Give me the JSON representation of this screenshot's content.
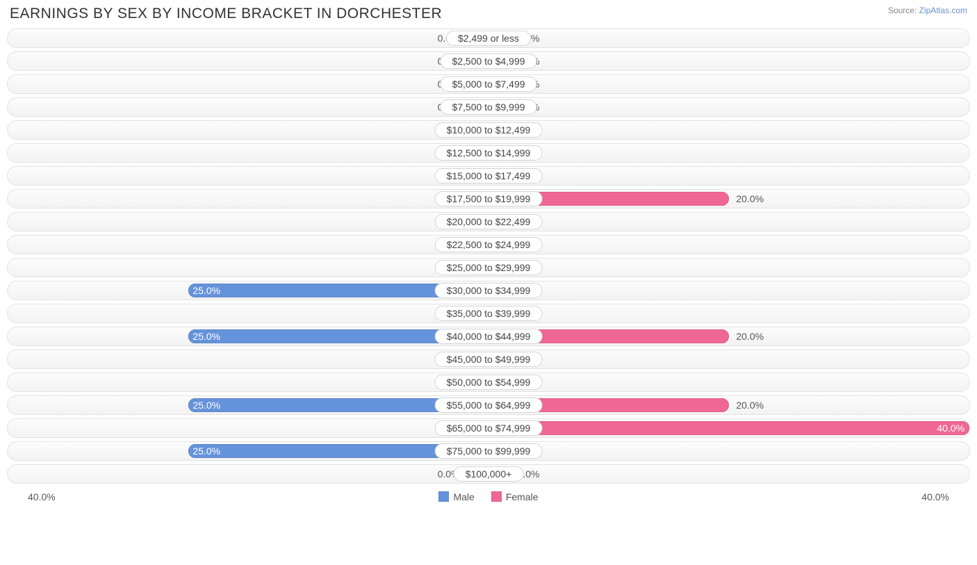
{
  "title": "EARNINGS BY SEX BY INCOME BRACKET IN DORCHESTER",
  "source_prefix": "Source: ",
  "source_link": "ZipAtlas.com",
  "axis_max_label": "40.0%",
  "axis_max_value": 40.0,
  "min_bar_pct": 4.5,
  "colors": {
    "male_fill": "#9cbdea",
    "male_main_fill": "#6593db",
    "male_border": "#5c87c9",
    "female_fill": "#f6aac2",
    "female_main_fill": "#ef6795",
    "female_border": "#e35d8a",
    "track_border": "#e2e2e2",
    "label_bg": "#ffffff",
    "label_border": "#d5d5d5",
    "text": "#555555"
  },
  "legend": {
    "male": "Male",
    "female": "Female"
  },
  "brackets": [
    {
      "label": "$2,499 or less",
      "male": 0.0,
      "female": 0.0
    },
    {
      "label": "$2,500 to $4,999",
      "male": 0.0,
      "female": 0.0
    },
    {
      "label": "$5,000 to $7,499",
      "male": 0.0,
      "female": 0.0
    },
    {
      "label": "$7,500 to $9,999",
      "male": 0.0,
      "female": 0.0
    },
    {
      "label": "$10,000 to $12,499",
      "male": 0.0,
      "female": 0.0
    },
    {
      "label": "$12,500 to $14,999",
      "male": 0.0,
      "female": 0.0
    },
    {
      "label": "$15,000 to $17,499",
      "male": 0.0,
      "female": 0.0
    },
    {
      "label": "$17,500 to $19,999",
      "male": 0.0,
      "female": 20.0
    },
    {
      "label": "$20,000 to $22,499",
      "male": 0.0,
      "female": 0.0
    },
    {
      "label": "$22,500 to $24,999",
      "male": 0.0,
      "female": 0.0
    },
    {
      "label": "$25,000 to $29,999",
      "male": 0.0,
      "female": 0.0
    },
    {
      "label": "$30,000 to $34,999",
      "male": 25.0,
      "female": 0.0
    },
    {
      "label": "$35,000 to $39,999",
      "male": 0.0,
      "female": 0.0
    },
    {
      "label": "$40,000 to $44,999",
      "male": 25.0,
      "female": 20.0
    },
    {
      "label": "$45,000 to $49,999",
      "male": 0.0,
      "female": 0.0
    },
    {
      "label": "$50,000 to $54,999",
      "male": 0.0,
      "female": 0.0
    },
    {
      "label": "$55,000 to $64,999",
      "male": 25.0,
      "female": 20.0
    },
    {
      "label": "$65,000 to $74,999",
      "male": 0.0,
      "female": 40.0
    },
    {
      "label": "$75,000 to $99,999",
      "male": 25.0,
      "female": 0.0
    },
    {
      "label": "$100,000+",
      "male": 0.0,
      "female": 0.0
    }
  ]
}
